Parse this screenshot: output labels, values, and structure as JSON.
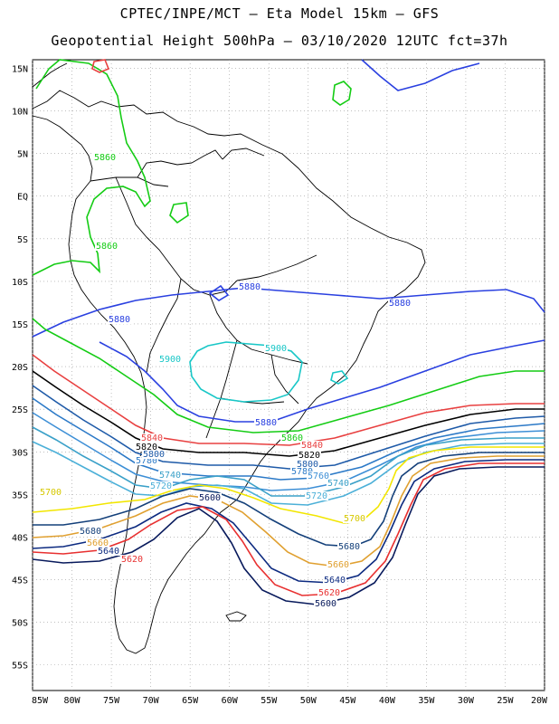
{
  "header": {
    "line1": "CPTEC/INPE/MCT –  Eta Model 15km – GFS",
    "line2": "Geopotential Height 500hPa – 03/10/2020 12UTC fct=37h"
  },
  "axes": {
    "lat_labels": [
      "15N",
      "10N",
      "5N",
      "EQ",
      "5S",
      "10S",
      "15S",
      "20S",
      "25S",
      "30S",
      "35S",
      "40S",
      "45S",
      "50S",
      "55S"
    ],
    "lon_labels": [
      "85W",
      "80W",
      "75W",
      "70W",
      "65W",
      "60W",
      "55W",
      "50W",
      "45W",
      "40W",
      "35W",
      "30W",
      "25W",
      "20W"
    ],
    "lon_range": [
      -85,
      -20
    ],
    "lat_range": [
      -58,
      16
    ],
    "grid": "dotted"
  },
  "contours": [
    {
      "level": "5900",
      "color": "#19c7c7"
    },
    {
      "level": "5880",
      "color": "#2a40e0"
    },
    {
      "level": "5860",
      "color": "#14cc14"
    },
    {
      "level": "5840",
      "color": "#e84040"
    },
    {
      "level": "5820",
      "color": "#000000"
    },
    {
      "level": "5800",
      "color": "#1e5aa8"
    },
    {
      "level": "5780",
      "color": "#2b79c7"
    },
    {
      "level": "5760",
      "color": "#3d8fd6"
    },
    {
      "level": "5740",
      "color": "#3aa0c8"
    },
    {
      "level": "5720",
      "color": "#4cb0d8"
    },
    {
      "level": "5700",
      "color": "#f2e600"
    },
    {
      "level": "5680",
      "color": "#14407a"
    },
    {
      "level": "5660",
      "color": "#e0a030"
    },
    {
      "level": "5640",
      "color": "#0c2a80"
    },
    {
      "level": "5620",
      "color": "#e83030"
    },
    {
      "level": "5600",
      "color": "#081a5c"
    }
  ],
  "contour_labels": [
    {
      "text": "5860",
      "color": "#14cc14"
    },
    {
      "text": "5860",
      "color": "#14cc14"
    },
    {
      "text": "5880",
      "color": "#2a40e0"
    },
    {
      "text": "5880",
      "color": "#2a40e0"
    },
    {
      "text": "5880",
      "color": "#2a40e0"
    },
    {
      "text": "5900",
      "color": "#19c7c7"
    },
    {
      "text": "5900",
      "color": "#19c7c7"
    },
    {
      "text": "5880",
      "color": "#2a40e0"
    },
    {
      "text": "5860",
      "color": "#14cc14"
    },
    {
      "text": "5840",
      "color": "#e84040"
    },
    {
      "text": "5840",
      "color": "#e84040"
    },
    {
      "text": "5820",
      "color": "#000000"
    },
    {
      "text": "5820",
      "color": "#000000"
    },
    {
      "text": "5800",
      "color": "#1e5aa8"
    },
    {
      "text": "5780",
      "color": "#2b79c7"
    },
    {
      "text": "5760",
      "color": "#3d8fd6"
    },
    {
      "text": "5740",
      "color": "#3aa0c8"
    },
    {
      "text": "5720",
      "color": "#4cb0d8"
    },
    {
      "text": "5700",
      "color": "#d6c800"
    },
    {
      "text": "5700",
      "color": "#d6c800"
    },
    {
      "text": "5680",
      "color": "#14407a"
    },
    {
      "text": "5680",
      "color": "#14407a"
    },
    {
      "text": "5660",
      "color": "#e0a030"
    },
    {
      "text": "5660",
      "color": "#e0a030"
    },
    {
      "text": "5640",
      "color": "#0c2a80"
    },
    {
      "text": "5640",
      "color": "#0c2a80"
    },
    {
      "text": "5620",
      "color": "#e83030"
    },
    {
      "text": "5620",
      "color": "#e83030"
    },
    {
      "text": "5600",
      "color": "#081a5c"
    },
    {
      "text": "5600",
      "color": "#081a5c"
    },
    {
      "text": "5740",
      "color": "#3aa0c8"
    },
    {
      "text": "5720",
      "color": "#4cb0d8"
    },
    {
      "text": "5780",
      "color": "#2b79c7"
    },
    {
      "text": "5800",
      "color": "#1e5aa8"
    }
  ]
}
